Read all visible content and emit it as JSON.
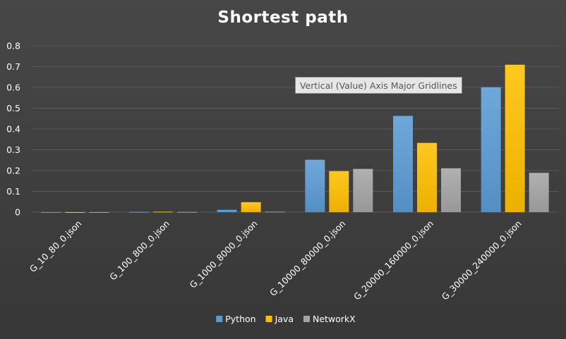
{
  "chart_data": {
    "type": "bar",
    "title": "Shortest path",
    "categories": [
      "G_10_80_0.json",
      "G_100_800_0.json",
      "G_1000_8000_0.json",
      "G_10000_80000_0.json",
      "G_20000_160000_0.json",
      "G_30000_240000_0.json"
    ],
    "series": [
      {
        "name": "Python",
        "values": [
          0.0,
          0.001,
          0.011,
          0.252,
          0.463,
          0.601
        ]
      },
      {
        "name": "Java",
        "values": [
          0.0,
          0.002,
          0.048,
          0.197,
          0.333,
          0.709
        ]
      },
      {
        "name": "NetworkX",
        "values": [
          0.0,
          0.001,
          0.002,
          0.208,
          0.211,
          0.189
        ]
      }
    ],
    "ylim": [
      0,
      0.8
    ],
    "yticks": [
      "0",
      "0.1",
      "0.2",
      "0.3",
      "0.4",
      "0.5",
      "0.6",
      "0.7",
      "0.8"
    ],
    "xlabel": "",
    "ylabel": "",
    "grid": true,
    "legend_position": "bottom",
    "colors": {
      "Python": "#5b9bd5",
      "Java": "#ffc000",
      "NetworkX": "#a5a5a5",
      "gridline": "#595959",
      "background": "#404040"
    }
  },
  "tooltip": {
    "text": "Vertical (Value) Axis Major Gridlines"
  }
}
